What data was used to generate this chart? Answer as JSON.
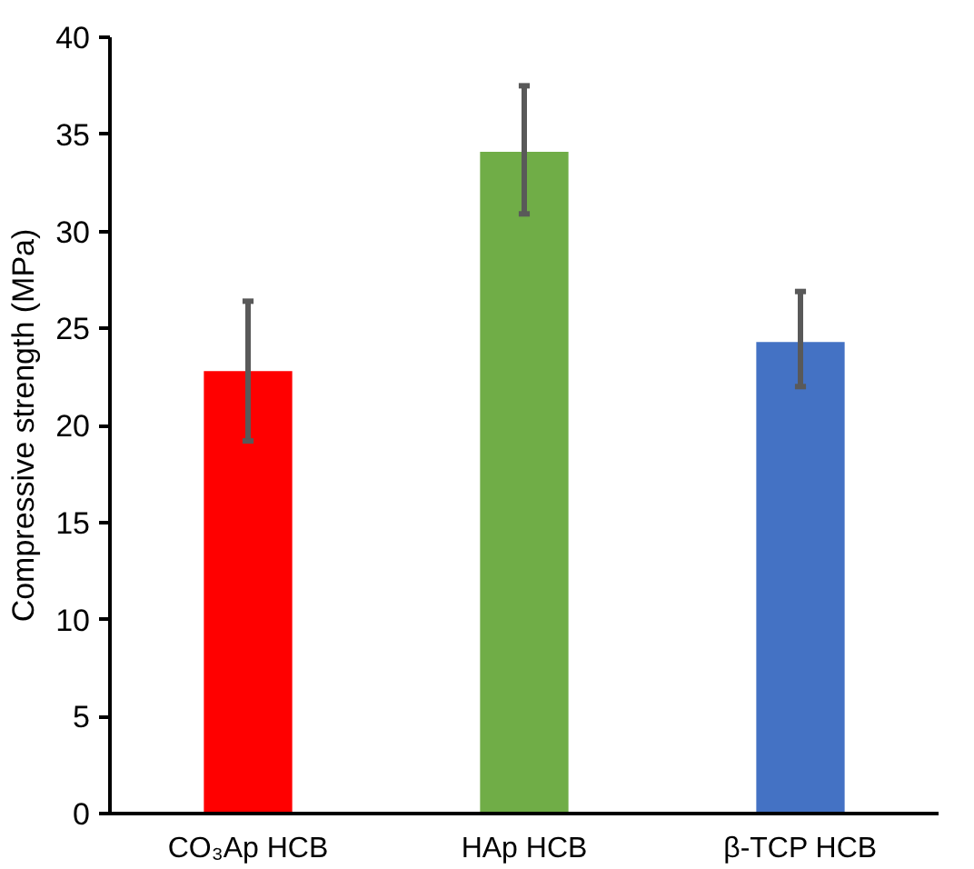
{
  "chart_data": {
    "type": "bar",
    "ylabel": "Compressive strength (MPa)",
    "categories": [
      "CO₃Ap HCB",
      "HAp HCB",
      "β-TCP HCB"
    ],
    "values": [
      22.8,
      34.1,
      24.3
    ],
    "colors": [
      "#ff0000",
      "#70ad47",
      "#4472c4"
    ],
    "errors": [
      [
        19.2,
        26.4
      ],
      [
        30.9,
        37.5
      ],
      [
        22.0,
        26.9
      ]
    ],
    "ylim": [
      0,
      40
    ],
    "yticks": [
      0,
      5,
      10,
      15,
      20,
      25,
      30,
      35,
      40
    ],
    "grid": false
  }
}
